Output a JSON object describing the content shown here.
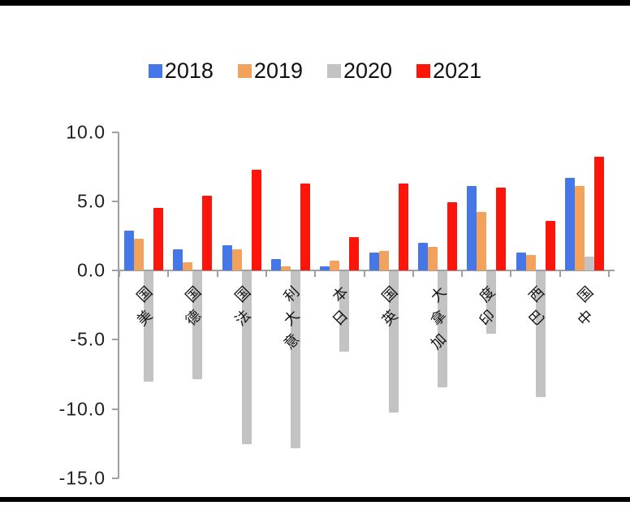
{
  "chart_data": {
    "type": "bar",
    "title": "",
    "xlabel": "",
    "ylabel": "",
    "categories": [
      "美国",
      "德国",
      "法国",
      "意大利",
      "日本",
      "英国",
      "加拿大",
      "印度",
      "巴西",
      "中国"
    ],
    "series": [
      {
        "name": "2018",
        "color": "#4677E8",
        "values": [
          2.9,
          1.5,
          1.8,
          0.8,
          0.3,
          1.3,
          2.0,
          6.1,
          1.3,
          6.7
        ]
      },
      {
        "name": "2019",
        "color": "#F2A25A",
        "values": [
          2.3,
          0.6,
          1.5,
          0.3,
          0.7,
          1.4,
          1.7,
          4.2,
          1.1,
          6.1
        ]
      },
      {
        "name": "2020",
        "color": "#C3C3C3",
        "values": [
          -8.0,
          -7.8,
          -12.5,
          -12.8,
          -5.8,
          -10.2,
          -8.4,
          -4.5,
          -9.1,
          1.0
        ]
      },
      {
        "name": "2021",
        "color": "#FB150A",
        "values": [
          4.5,
          5.4,
          7.3,
          6.3,
          2.4,
          6.3,
          4.9,
          6.0,
          3.6,
          8.2
        ]
      }
    ],
    "ylim": [
      -15,
      10
    ],
    "ytick_values": [
      10,
      5,
      0,
      -5,
      -10,
      -15
    ],
    "ytick_labels": [
      "10.0",
      "5.0",
      "0.0",
      "-5.0",
      "-10.0",
      "-15.0"
    ],
    "grid": false,
    "legend_position": "top",
    "axis_color": "#a0a0a0",
    "rule_color": "#000000"
  }
}
